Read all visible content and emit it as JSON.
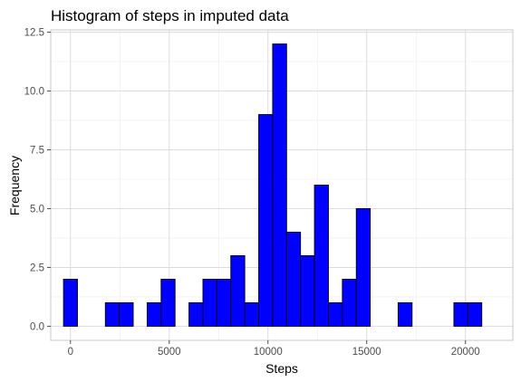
{
  "chart_data": {
    "type": "bar",
    "title": "Histogram of steps in imputed data",
    "xlabel": "Steps",
    "ylabel": "Frequency",
    "bar_color": "#0000ff",
    "bar_outline_color": "#000000",
    "grid": true,
    "bin_width": 706,
    "xlim": [
      -1000,
      22400
    ],
    "ylim": [
      -0.6,
      12.6
    ],
    "x_ticks": [
      {
        "value": 0,
        "label": "0"
      },
      {
        "value": 5000,
        "label": "5000"
      },
      {
        "value": 10000,
        "label": "10000"
      },
      {
        "value": 15000,
        "label": "15000"
      },
      {
        "value": 20000,
        "label": "20000"
      }
    ],
    "y_ticks": [
      {
        "value": 0,
        "label": "0.0"
      },
      {
        "value": 2.5,
        "label": "2.5"
      },
      {
        "value": 5,
        "label": "5.0"
      },
      {
        "value": 7.5,
        "label": "7.5"
      },
      {
        "value": 10,
        "label": "10.0"
      },
      {
        "value": 12.5,
        "label": "12.5"
      }
    ],
    "bins": [
      {
        "x": 0,
        "count": 2
      },
      {
        "x": 706,
        "count": 0
      },
      {
        "x": 1412,
        "count": 0
      },
      {
        "x": 2118,
        "count": 1
      },
      {
        "x": 2824,
        "count": 1
      },
      {
        "x": 3530,
        "count": 0
      },
      {
        "x": 4236,
        "count": 1
      },
      {
        "x": 4942,
        "count": 2
      },
      {
        "x": 5648,
        "count": 0
      },
      {
        "x": 6354,
        "count": 1
      },
      {
        "x": 7060,
        "count": 2
      },
      {
        "x": 7766,
        "count": 2
      },
      {
        "x": 8472,
        "count": 3
      },
      {
        "x": 9178,
        "count": 1
      },
      {
        "x": 9884,
        "count": 9
      },
      {
        "x": 10590,
        "count": 12
      },
      {
        "x": 11296,
        "count": 4
      },
      {
        "x": 12002,
        "count": 3
      },
      {
        "x": 12708,
        "count": 6
      },
      {
        "x": 13414,
        "count": 1
      },
      {
        "x": 14120,
        "count": 2
      },
      {
        "x": 14826,
        "count": 5
      },
      {
        "x": 15532,
        "count": 0
      },
      {
        "x": 16238,
        "count": 0
      },
      {
        "x": 16944,
        "count": 1
      },
      {
        "x": 17650,
        "count": 0
      },
      {
        "x": 18356,
        "count": 0
      },
      {
        "x": 19062,
        "count": 0
      },
      {
        "x": 19768,
        "count": 1
      },
      {
        "x": 20474,
        "count": 1
      }
    ]
  }
}
